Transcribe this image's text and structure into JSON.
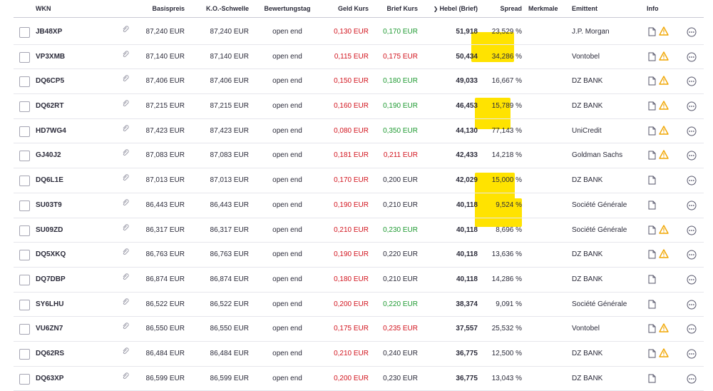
{
  "columns": {
    "wkn": "WKN",
    "basispreis": "Basispreis",
    "ko_schwelle": "K.O.-Schwelle",
    "bewertungstag": "Bewertungstag",
    "geld_kurs": "Geld Kurs",
    "brief_kurs": "Brief Kurs",
    "hebel": "Hebel (Brief)",
    "spread": "Spread",
    "merkmale": "Merkmale",
    "emittent": "Emittent",
    "info": "Info"
  },
  "colors": {
    "red": "#d2141e",
    "green": "#1f9a32",
    "highlight": "#ffe300",
    "warning": "#f0a500"
  },
  "rows": [
    {
      "wkn": "JB48XP",
      "basispreis": "87,240 EUR",
      "ko_schwelle": "87,240 EUR",
      "bewertungstag": "open end",
      "geld": "0,130 EUR",
      "brief": "0,170 EUR",
      "brief_color": "green",
      "hebel": "51,918",
      "spread": "23,529 %",
      "emittent": "J.P. Morgan",
      "warning": true,
      "highlight": false
    },
    {
      "wkn": "VP3XMB",
      "basispreis": "87,140 EUR",
      "ko_schwelle": "87,140 EUR",
      "bewertungstag": "open end",
      "geld": "0,115 EUR",
      "brief": "0,175 EUR",
      "brief_color": "red",
      "hebel": "50,434",
      "spread": "34,286 %",
      "emittent": "Vontobel",
      "warning": true,
      "highlight": true
    },
    {
      "wkn": "DQ6CP5",
      "basispreis": "87,406 EUR",
      "ko_schwelle": "87,406 EUR",
      "bewertungstag": "open end",
      "geld": "0,150 EUR",
      "brief": "0,180 EUR",
      "brief_color": "green",
      "hebel": "49,033",
      "spread": "16,667 %",
      "emittent": "DZ BANK",
      "warning": true,
      "highlight": false
    },
    {
      "wkn": "DQ62RT",
      "basispreis": "87,215 EUR",
      "ko_schwelle": "87,215 EUR",
      "bewertungstag": "open end",
      "geld": "0,160 EUR",
      "brief": "0,190 EUR",
      "brief_color": "green",
      "hebel": "46,453",
      "spread": "15,789 %",
      "emittent": "DZ BANK",
      "warning": true,
      "highlight": false
    },
    {
      "wkn": "HD7WG4",
      "basispreis": "87,423 EUR",
      "ko_schwelle": "87,423 EUR",
      "bewertungstag": "open end",
      "geld": "0,080 EUR",
      "brief": "0,350 EUR",
      "brief_color": "green",
      "hebel": "44,130",
      "spread": "77,143 %",
      "emittent": "UniCredit",
      "warning": true,
      "highlight": true
    },
    {
      "wkn": "GJ40J2",
      "basispreis": "87,083 EUR",
      "ko_schwelle": "87,083 EUR",
      "bewertungstag": "open end",
      "geld": "0,181 EUR",
      "brief": "0,211 EUR",
      "brief_color": "red",
      "hebel": "42,433",
      "spread": "14,218 %",
      "emittent": "Goldman Sachs",
      "warning": true,
      "highlight": false
    },
    {
      "wkn": "DQ6L1E",
      "basispreis": "87,013 EUR",
      "ko_schwelle": "87,013 EUR",
      "bewertungstag": "open end",
      "geld": "0,170 EUR",
      "brief": "0,200 EUR",
      "brief_color": "dark",
      "hebel": "42,029",
      "spread": "15,000 %",
      "emittent": "DZ BANK",
      "warning": false,
      "highlight": false
    },
    {
      "wkn": "SU03T9",
      "basispreis": "86,443 EUR",
      "ko_schwelle": "86,443 EUR",
      "bewertungstag": "open end",
      "geld": "0,190 EUR",
      "brief": "0,210 EUR",
      "brief_color": "dark",
      "hebel": "40,118",
      "spread": "9,524 %",
      "emittent": "Société Générale",
      "warning": false,
      "highlight": true
    },
    {
      "wkn": "SU09ZD",
      "basispreis": "86,317 EUR",
      "ko_schwelle": "86,317 EUR",
      "bewertungstag": "open end",
      "geld": "0,210 EUR",
      "brief": "0,230 EUR",
      "brief_color": "green",
      "hebel": "40,118",
      "spread": "8,696 %",
      "emittent": "Société Générale",
      "warning": true,
      "highlight": true
    },
    {
      "wkn": "DQ5XKQ",
      "basispreis": "86,763 EUR",
      "ko_schwelle": "86,763 EUR",
      "bewertungstag": "open end",
      "geld": "0,190 EUR",
      "brief": "0,220 EUR",
      "brief_color": "dark",
      "hebel": "40,118",
      "spread": "13,636 %",
      "emittent": "DZ BANK",
      "warning": true,
      "highlight": false
    },
    {
      "wkn": "DQ7DBP",
      "basispreis": "86,874 EUR",
      "ko_schwelle": "86,874 EUR",
      "bewertungstag": "open end",
      "geld": "0,180 EUR",
      "brief": "0,210 EUR",
      "brief_color": "dark",
      "hebel": "40,118",
      "spread": "14,286 %",
      "emittent": "DZ BANK",
      "warning": false,
      "highlight": false
    },
    {
      "wkn": "SY6LHU",
      "basispreis": "86,522 EUR",
      "ko_schwelle": "86,522 EUR",
      "bewertungstag": "open end",
      "geld": "0,200 EUR",
      "brief": "0,220 EUR",
      "brief_color": "green",
      "hebel": "38,374",
      "spread": "9,091 %",
      "emittent": "Société Générale",
      "warning": false,
      "highlight": false
    },
    {
      "wkn": "VU6ZN7",
      "basispreis": "86,550 EUR",
      "ko_schwelle": "86,550 EUR",
      "bewertungstag": "open end",
      "geld": "0,175 EUR",
      "brief": "0,235 EUR",
      "brief_color": "red",
      "hebel": "37,557",
      "spread": "25,532 %",
      "emittent": "Vontobel",
      "warning": true,
      "highlight": false
    },
    {
      "wkn": "DQ62RS",
      "basispreis": "86,484 EUR",
      "ko_schwelle": "86,484 EUR",
      "bewertungstag": "open end",
      "geld": "0,210 EUR",
      "brief": "0,240 EUR",
      "brief_color": "dark",
      "hebel": "36,775",
      "spread": "12,500 %",
      "emittent": "DZ BANK",
      "warning": true,
      "highlight": false
    },
    {
      "wkn": "DQ63XP",
      "basispreis": "86,599 EUR",
      "ko_schwelle": "86,599 EUR",
      "bewertungstag": "open end",
      "geld": "0,200 EUR",
      "brief": "0,230 EUR",
      "brief_color": "dark",
      "hebel": "36,775",
      "spread": "13,043 %",
      "emittent": "DZ BANK",
      "warning": false,
      "highlight": false
    }
  ]
}
